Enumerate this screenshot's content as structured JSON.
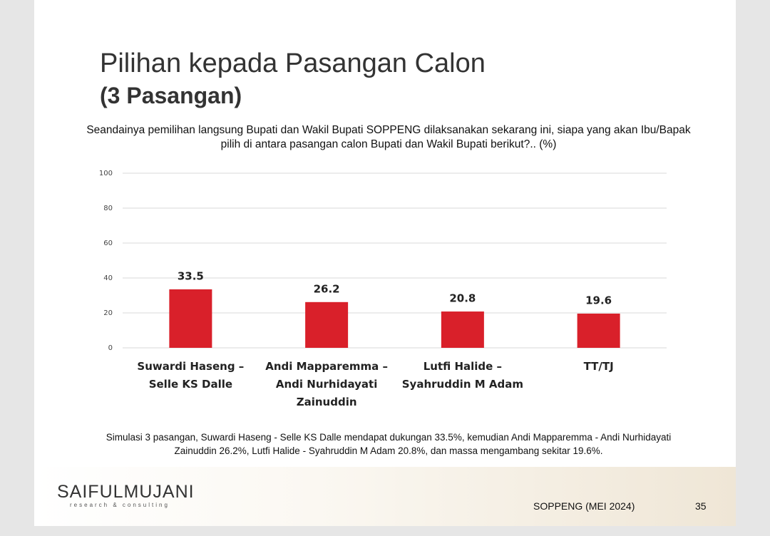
{
  "title": "Pilihan kepada Pasangan Calon",
  "subtitle": "(3 Pasangan)",
  "chart_data": {
    "type": "bar",
    "title": "Seandainya pemilihan langsung Bupati dan Wakil Bupati SOPPENG dilaksanakan sekarang ini, siapa yang akan Ibu/Bapak pilih di antara pasangan calon Bupati dan Wakil Bupati berikut?.. (%)",
    "categories": [
      "Suwardi Haseng – Selle KS Dalle",
      "Andi Mapparemma – Andi Nurhidayati Zainuddin",
      "Lutfi Halide – Syahruddin M Adam",
      "TT/TJ"
    ],
    "values": [
      33.5,
      26.2,
      20.8,
      19.6
    ],
    "color": "#d9202a",
    "ylim": [
      0,
      100
    ],
    "yticks": [
      0,
      20,
      40,
      60,
      80,
      100
    ],
    "grid": true
  },
  "note": "Simulasi 3 pasangan, Suwardi Haseng - Selle KS Dalle mendapat dukungan 33.5%, kemudian Andi Mapparemma - Andi Nurhidayati Zainuddin 26.2%, Lutfi Halide - Syahruddin M Adam 20.8%, dan massa mengambang sekitar 19.6%.",
  "footer": {
    "logo": "SAIFULMUJANI",
    "logo_sub": "research & consulting",
    "label": "SOPPENG (MEI 2024)",
    "page": "35"
  }
}
